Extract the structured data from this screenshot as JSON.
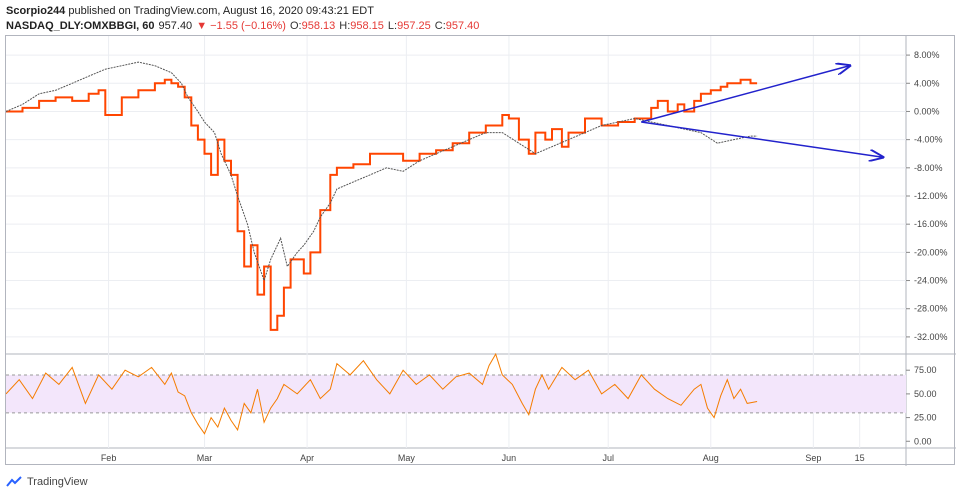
{
  "header": {
    "author": "Scorpio244",
    "published_text": "published on TradingView.com, August 16, 2020 09:43:21 EDT",
    "symbol": "NASDAQ_DLY:OMXBBGI, 60",
    "last": "957.40",
    "change": "▼ −1.55 (−0.16%)",
    "o_label": "O:",
    "o_value": "958.13",
    "h_label": "H:",
    "h_value": "958.15",
    "l_label": "L:",
    "l_value": "957.25",
    "c_label": "C:",
    "c_value": "957.40"
  },
  "footer": {
    "brand": "TradingView"
  },
  "colors": {
    "main_line": "#ff4500",
    "compare_line": "#555555",
    "rsi_line": "#f57c00",
    "rsi_band": "#f3e6fb",
    "arrow": "#2222cc"
  },
  "chart_data": [
    {
      "type": "line",
      "ylim": [
        -34,
        10
      ],
      "y_ticks": [
        "8.00%",
        "4.00%",
        "0.00%",
        "-4.00%",
        "-8.00%",
        "-12.00%",
        "-16.00%",
        "-20.00%",
        "-24.00%",
        "-28.00%",
        "-32.00%"
      ],
      "y_tick_values": [
        8,
        4,
        0,
        -4,
        -8,
        -12,
        -16,
        -20,
        -24,
        -28,
        -32
      ],
      "x_labels": [
        "Feb",
        "Mar",
        "Apr",
        "May",
        "Jun",
        "Jul",
        "Aug",
        "Sep",
        "15"
      ],
      "x_label_days": [
        31,
        60,
        91,
        121,
        152,
        182,
        213,
        244,
        258
      ],
      "xlim": [
        0,
        272
      ],
      "series": [
        {
          "values_day": [
            0,
            5,
            10,
            15,
            20,
            25,
            28,
            30,
            35,
            40,
            45,
            48,
            50,
            52,
            54,
            56,
            58,
            60,
            62,
            64,
            66,
            68,
            70,
            72,
            74,
            76,
            78,
            80,
            82,
            84,
            86,
            88,
            90,
            92,
            95,
            98,
            100,
            105,
            110,
            115,
            120,
            125,
            130,
            135,
            140,
            145,
            150,
            152,
            155,
            158,
            160,
            163,
            165,
            168,
            170,
            175,
            180,
            185,
            190,
            195,
            197,
            200,
            203,
            205,
            208,
            210,
            213,
            216,
            218,
            220,
            222,
            225,
            227
          ],
          "values": [
            0,
            0.5,
            1.5,
            2,
            1.5,
            2.5,
            3,
            -0.5,
            2,
            3,
            4,
            4.5,
            4,
            3.5,
            2,
            -2,
            -4,
            -6,
            -9,
            -4,
            -7,
            -9,
            -17,
            -22,
            -19,
            -26,
            -22,
            -31,
            -29,
            -25,
            -21,
            -21,
            -23,
            -20,
            -14,
            -9,
            -8,
            -7.5,
            -6,
            -6,
            -7,
            -6,
            -5.5,
            -4.5,
            -3,
            -2,
            -0.5,
            -1,
            -4,
            -6,
            -3,
            -4,
            -2.5,
            -5,
            -3,
            -1,
            -2,
            -1.5,
            -1,
            0.5,
            1.5,
            0,
            1,
            0,
            1.5,
            2.5,
            3,
            3.5,
            4,
            4,
            4.5,
            4,
            4
          ],
          "line_width": 2
        },
        {
          "values_day": [
            0,
            5,
            10,
            15,
            20,
            25,
            30,
            35,
            40,
            45,
            50,
            53,
            55,
            58,
            60,
            63,
            65,
            68,
            70,
            73,
            75,
            78,
            80,
            83,
            85,
            88,
            90,
            93,
            95,
            98,
            100,
            105,
            110,
            115,
            120,
            125,
            130,
            135,
            140,
            145,
            150,
            155,
            160,
            165,
            170,
            175,
            180,
            185,
            190,
            195,
            200,
            205,
            210,
            215,
            220,
            225,
            227
          ],
          "values": [
            0,
            1,
            2.5,
            3,
            4,
            5,
            6,
            6.5,
            7,
            6.5,
            5.5,
            4,
            2,
            0,
            -1.5,
            -3,
            -6,
            -9,
            -12,
            -16,
            -20,
            -24,
            -21,
            -18,
            -22,
            -20,
            -19,
            -17,
            -15,
            -13,
            -11,
            -10,
            -9,
            -8,
            -8.5,
            -7,
            -6,
            -5,
            -4,
            -3,
            -3,
            -4.5,
            -6,
            -5,
            -4,
            -3,
            -2,
            -1.5,
            -1,
            -1.5,
            -2,
            -2.5,
            -3,
            -4.5,
            -4,
            -3.5,
            -3.5
          ],
          "line_width": 1
        }
      ],
      "annotations": {
        "arrows": [
          {
            "from": [
              192,
              -1.5
            ],
            "to": [
              255,
              6.5
            ]
          },
          {
            "from": [
              192,
              -1.5
            ],
            "to": [
              265,
              -6.5
            ]
          }
        ]
      }
    },
    {
      "type": "line",
      "ylim": [
        -5,
        90
      ],
      "y_ticks": [
        "75.00",
        "50.00",
        "25.00",
        "0.00"
      ],
      "y_tick_values": [
        75,
        50,
        25,
        0
      ],
      "band": [
        30,
        70
      ],
      "xlim": [
        0,
        272
      ],
      "series": [
        {
          "values_day": [
            0,
            4,
            8,
            12,
            16,
            20,
            24,
            28,
            32,
            36,
            40,
            44,
            48,
            50,
            52,
            54,
            56,
            58,
            60,
            62,
            64,
            66,
            68,
            70,
            72,
            74,
            76,
            78,
            80,
            82,
            84,
            88,
            92,
            95,
            98,
            100,
            104,
            108,
            112,
            116,
            120,
            124,
            128,
            132,
            136,
            140,
            144,
            146,
            148,
            150,
            153,
            156,
            158,
            160,
            162,
            164,
            168,
            172,
            176,
            180,
            184,
            188,
            192,
            196,
            200,
            204,
            208,
            210,
            212,
            214,
            216,
            218,
            220,
            222,
            224,
            227
          ],
          "values": [
            50,
            65,
            45,
            72,
            60,
            78,
            40,
            70,
            55,
            75,
            68,
            78,
            60,
            72,
            52,
            48,
            30,
            18,
            8,
            25,
            15,
            35,
            22,
            12,
            40,
            30,
            55,
            20,
            35,
            45,
            60,
            50,
            65,
            45,
            55,
            82,
            70,
            85,
            65,
            50,
            75,
            60,
            70,
            55,
            68,
            72,
            60,
            80,
            92,
            70,
            60,
            40,
            28,
            55,
            70,
            55,
            78,
            65,
            75,
            50,
            60,
            45,
            70,
            55,
            45,
            38,
            55,
            60,
            35,
            25,
            48,
            65,
            45,
            55,
            40,
            42
          ],
          "line_width": 1
        }
      ]
    }
  ]
}
